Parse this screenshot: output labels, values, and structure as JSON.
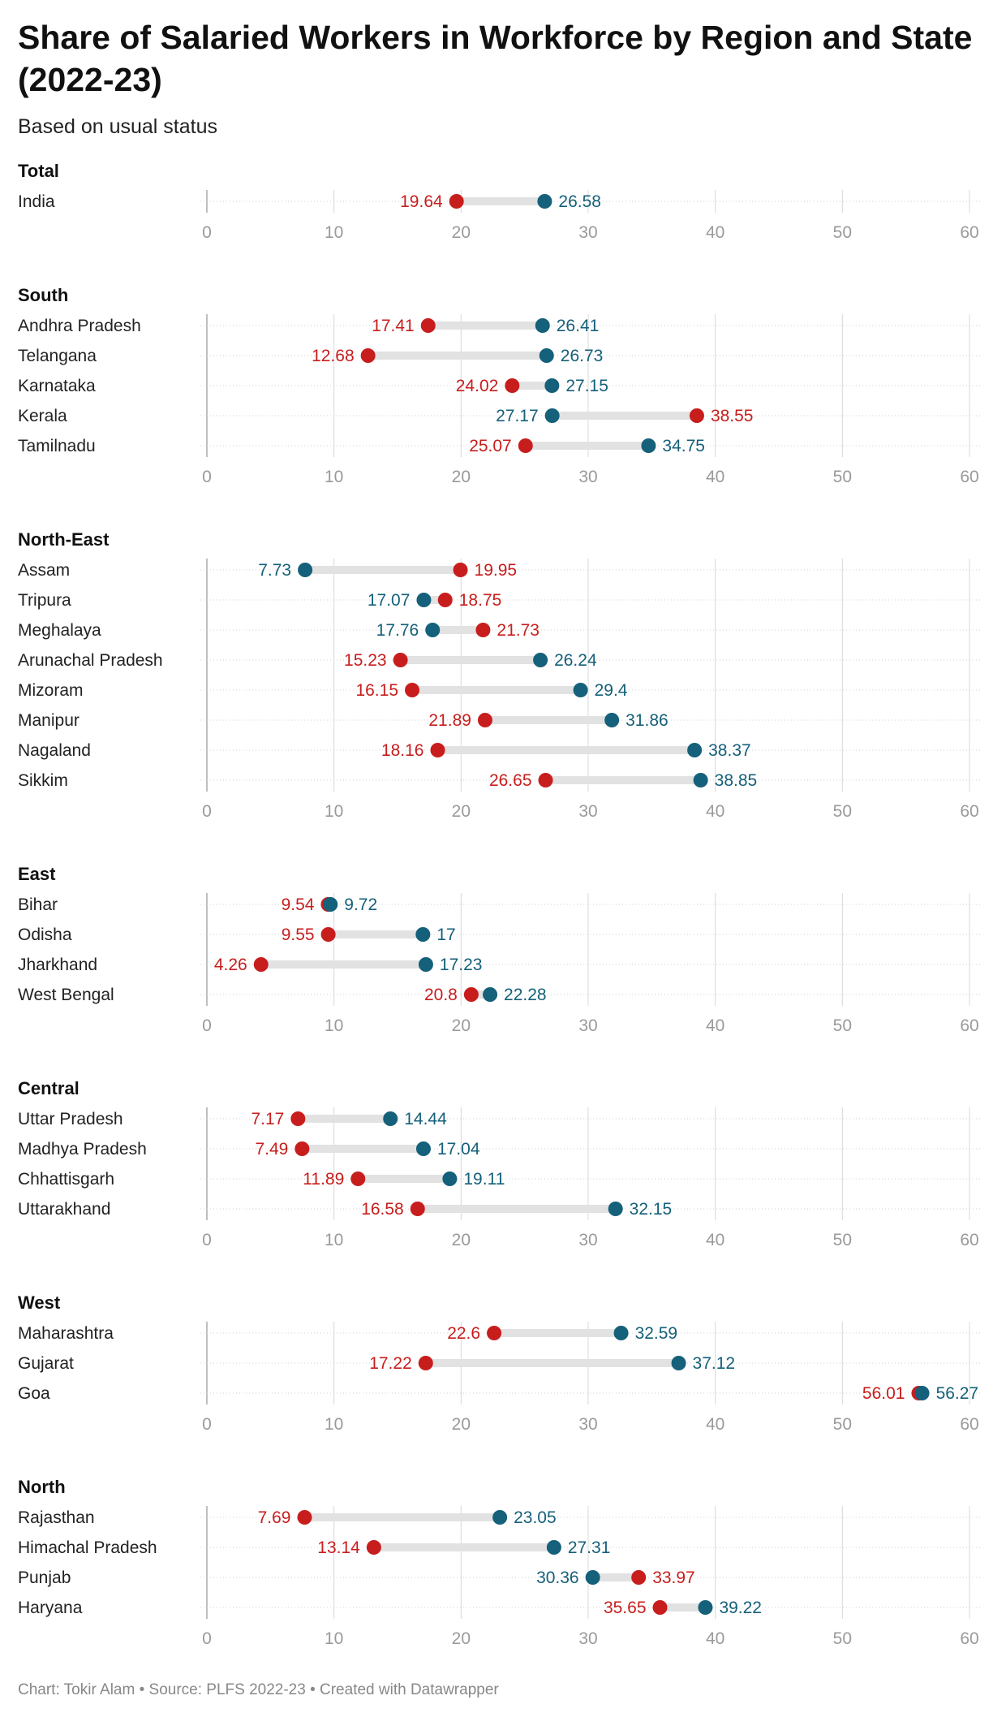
{
  "title": "Share of Salaried Workers in Workforce by Region and State (2022-23)",
  "subtitle": "Based on usual status",
  "footer": "Chart: Tokir Alam • Source: PLFS 2022-23 • Created with Datawrapper",
  "colors": {
    "series_a": "#c71e1d",
    "series_b": "#15607a",
    "range_bar": "#e2e2e2",
    "grid": "#d8d8d8",
    "tick_text": "#9a9a9a"
  },
  "chart_data": {
    "type": "dot-range",
    "xlim": [
      0,
      60
    ],
    "xticks": [
      0,
      10,
      20,
      30,
      40,
      50,
      60
    ],
    "grid": true,
    "series": [
      {
        "key": "a",
        "color": "#c71e1d"
      },
      {
        "key": "b",
        "color": "#15607a"
      }
    ],
    "groups": [
      {
        "name": "Total",
        "rows": [
          {
            "label": "India",
            "a": 19.64,
            "b": 26.58
          }
        ]
      },
      {
        "name": "South",
        "rows": [
          {
            "label": "Andhra Pradesh",
            "a": 17.41,
            "b": 26.41
          },
          {
            "label": "Telangana",
            "a": 12.68,
            "b": 26.73
          },
          {
            "label": "Karnataka",
            "a": 24.02,
            "b": 27.15
          },
          {
            "label": "Kerala",
            "a": 38.55,
            "b": 27.17
          },
          {
            "label": "Tamilnadu",
            "a": 25.07,
            "b": 34.75
          }
        ]
      },
      {
        "name": "North-East",
        "rows": [
          {
            "label": "Assam",
            "a": 19.95,
            "b": 7.73
          },
          {
            "label": "Tripura",
            "a": 18.75,
            "b": 17.07
          },
          {
            "label": "Meghalaya",
            "a": 21.73,
            "b": 17.76
          },
          {
            "label": "Arunachal Pradesh",
            "a": 15.23,
            "b": 26.24
          },
          {
            "label": "Mizoram",
            "a": 16.15,
            "b": 29.4
          },
          {
            "label": "Manipur",
            "a": 21.89,
            "b": 31.86
          },
          {
            "label": "Nagaland",
            "a": 18.16,
            "b": 38.37
          },
          {
            "label": "Sikkim",
            "a": 26.65,
            "b": 38.85
          }
        ]
      },
      {
        "name": "East",
        "rows": [
          {
            "label": "Bihar",
            "a": 9.54,
            "b": 9.72
          },
          {
            "label": "Odisha",
            "a": 9.55,
            "b": 17
          },
          {
            "label": "Jharkhand",
            "a": 4.26,
            "b": 17.23
          },
          {
            "label": "West Bengal",
            "a": 20.8,
            "b": 22.28
          }
        ]
      },
      {
        "name": "Central",
        "rows": [
          {
            "label": "Uttar Pradesh",
            "a": 7.17,
            "b": 14.44
          },
          {
            "label": "Madhya Pradesh",
            "a": 7.49,
            "b": 17.04
          },
          {
            "label": "Chhattisgarh",
            "a": 11.89,
            "b": 19.11
          },
          {
            "label": "Uttarakhand",
            "a": 16.58,
            "b": 32.15
          }
        ]
      },
      {
        "name": "West",
        "rows": [
          {
            "label": "Maharashtra",
            "a": 22.6,
            "b": 32.59
          },
          {
            "label": "Gujarat",
            "a": 17.22,
            "b": 37.12
          },
          {
            "label": "Goa",
            "a": 56.01,
            "b": 56.27
          }
        ]
      },
      {
        "name": "North",
        "rows": [
          {
            "label": "Rajasthan",
            "a": 7.69,
            "b": 23.05
          },
          {
            "label": "Himachal Pradesh",
            "a": 13.14,
            "b": 27.31
          },
          {
            "label": "Punjab",
            "a": 33.97,
            "b": 30.36
          },
          {
            "label": "Haryana",
            "a": 35.65,
            "b": 39.22
          }
        ]
      }
    ]
  }
}
